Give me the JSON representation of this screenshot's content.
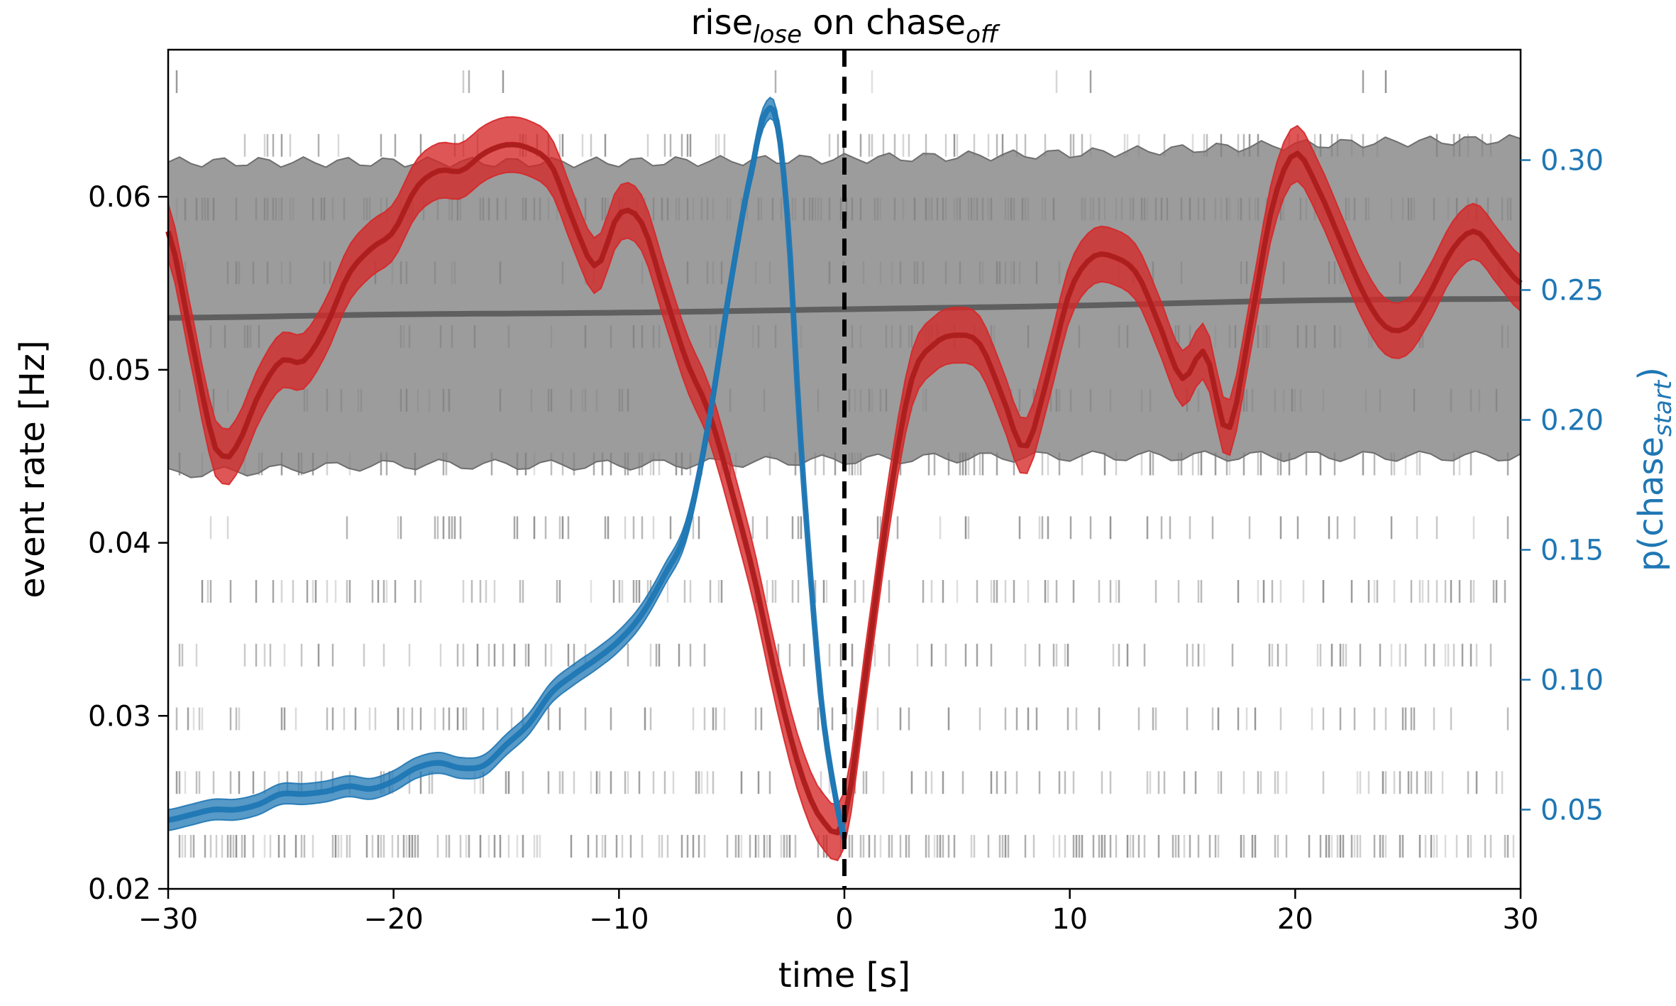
{
  "chart_data": {
    "type": "line",
    "title": {
      "part1": "rise",
      "part1_sub": "lose",
      "part2": " on chase",
      "part2_sub": "off"
    },
    "xlabel": "time [s]",
    "ylabel_left": "event rate [Hz]",
    "ylabel_right": {
      "base": "p(chase",
      "sub": "start",
      "close": ")"
    },
    "xlim": [
      -30,
      30
    ],
    "ylim_left": [
      0.02,
      0.0685
    ],
    "ylim_right": [
      0.0195,
      0.3425
    ],
    "xticks": [
      -30,
      -20,
      -10,
      0,
      10,
      20,
      30
    ],
    "xtick_labels": [
      "−30",
      "−20",
      "−10",
      "0",
      "10",
      "20",
      "30"
    ],
    "yticks_left": [
      0.02,
      0.03,
      0.04,
      0.05,
      0.06
    ],
    "ytick_labels_left": [
      "0.02",
      "0.03",
      "0.04",
      "0.05",
      "0.06"
    ],
    "yticks_right": [
      0.05,
      0.1,
      0.15,
      0.2,
      0.25,
      0.3
    ],
    "ytick_labels_right": [
      "0.05",
      "0.10",
      "0.15",
      "0.20",
      "0.25",
      "0.30"
    ],
    "event_line_x": 0,
    "colors": {
      "event_rate": "#d62728",
      "event_rate_band": "#d62728",
      "probability": "#1f77b4",
      "baseline": "#555555",
      "baseline_band": "#808080",
      "right_axis": "#1f77b4",
      "raster": "#000000"
    },
    "series": [
      {
        "name": "event rate",
        "axis": "left",
        "x": [
          -30,
          -29,
          -28,
          -27.5,
          -27,
          -26,
          -25,
          -24,
          -23,
          -22,
          -21,
          -20,
          -19,
          -18,
          -17,
          -16,
          -15,
          -14,
          -13,
          -12,
          -11,
          -10,
          -9,
          -8,
          -7,
          -6,
          -5,
          -4,
          -3,
          -2,
          -1,
          0,
          1,
          2,
          3,
          4,
          5,
          6,
          7,
          8,
          9,
          10,
          11,
          12,
          13,
          14,
          15,
          16,
          17,
          18,
          19,
          20,
          21,
          22,
          23,
          24,
          25,
          26,
          27,
          28,
          29,
          30
        ],
        "y": [
          0.058,
          0.052,
          0.046,
          0.045,
          0.0455,
          0.0485,
          0.0505,
          0.0505,
          0.0525,
          0.0555,
          0.057,
          0.058,
          0.0605,
          0.0615,
          0.0615,
          0.0625,
          0.063,
          0.0628,
          0.0618,
          0.0585,
          0.056,
          0.059,
          0.0585,
          0.0545,
          0.0505,
          0.0475,
          0.043,
          0.038,
          0.032,
          0.027,
          0.024,
          0.024,
          0.033,
          0.0425,
          0.0495,
          0.0515,
          0.052,
          0.0515,
          0.0485,
          0.0455,
          0.0495,
          0.0545,
          0.0565,
          0.0565,
          0.0555,
          0.0525,
          0.0495,
          0.051,
          0.0465,
          0.0525,
          0.0595,
          0.0625,
          0.0605,
          0.0575,
          0.0545,
          0.0525,
          0.0525,
          0.0545,
          0.057,
          0.058,
          0.0565,
          0.055
        ],
        "band_halfwidth": 0.0016
      },
      {
        "name": "p(chase start)",
        "axis": "right",
        "x": [
          -30,
          -29,
          -28,
          -27,
          -26,
          -25,
          -24,
          -23,
          -22,
          -21,
          -20,
          -19,
          -18,
          -17,
          -16,
          -15,
          -14,
          -13,
          -12,
          -11,
          -10,
          -9,
          -8,
          -7,
          -6,
          -5,
          -4,
          -3.5,
          -3,
          -2.5,
          -2,
          -1.5,
          -1,
          -0.5,
          0
        ],
        "y": [
          0.046,
          0.048,
          0.05,
          0.05,
          0.052,
          0.056,
          0.056,
          0.057,
          0.059,
          0.058,
          0.061,
          0.066,
          0.068,
          0.066,
          0.067,
          0.075,
          0.083,
          0.095,
          0.102,
          0.108,
          0.115,
          0.125,
          0.14,
          0.158,
          0.2,
          0.255,
          0.3,
          0.318,
          0.315,
          0.275,
          0.2,
          0.14,
          0.09,
          0.06,
          0.04
        ],
        "band_halfwidth": 0.004
      },
      {
        "name": "baseline",
        "axis": "left",
        "x": [
          -30,
          -20,
          -10,
          0,
          10,
          20,
          30
        ],
        "y": [
          0.053,
          0.0532,
          0.0533,
          0.0535,
          0.0537,
          0.054,
          0.0541
        ],
        "band_upper": [
          0.062,
          0.062,
          0.062,
          0.0622,
          0.0625,
          0.063,
          0.0633
        ],
        "band_lower": [
          0.044,
          0.0445,
          0.0445,
          0.0448,
          0.045,
          0.045,
          0.045
        ]
      }
    ],
    "raster_rows": 13,
    "grid": false,
    "legend": "none"
  }
}
